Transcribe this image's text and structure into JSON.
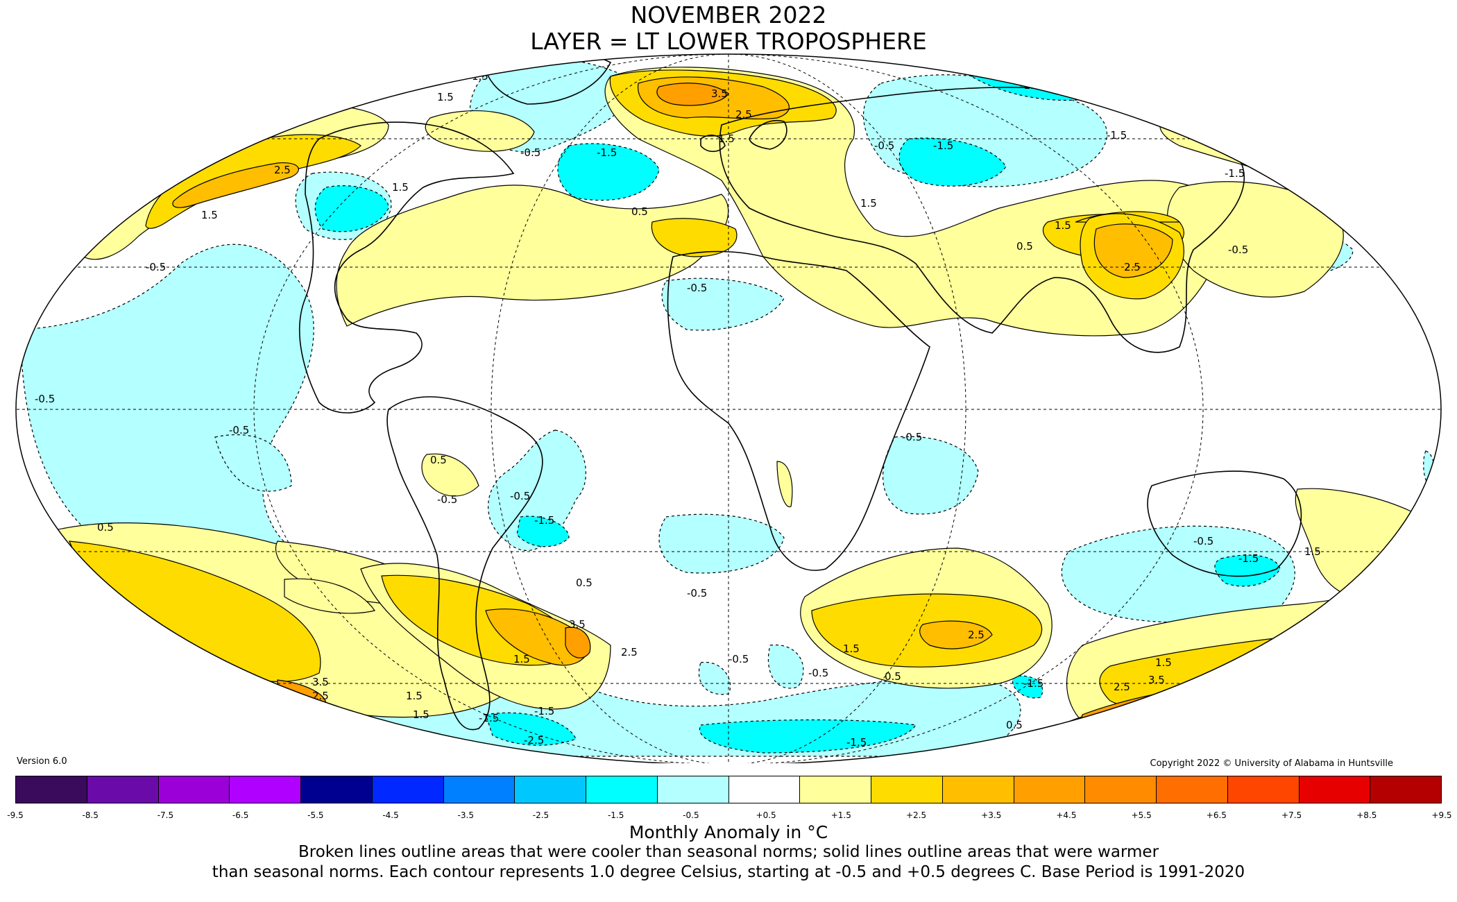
{
  "title": {
    "line1": "NOVEMBER 2022",
    "line2": "LAYER = LT LOWER TROPOSPHERE"
  },
  "version": "Version 6.0",
  "copyright": "Copyright 2022 © University of Alabama in Huntsville",
  "colorbar": {
    "label": "Monthly Anomaly in °C",
    "ticks": [
      "-9.5",
      "-8.5",
      "-7.5",
      "-6.5",
      "-5.5",
      "-4.5",
      "-3.5",
      "-2.5",
      "-1.5",
      "-0.5",
      "+0.5",
      "+1.5",
      "+2.5",
      "+3.5",
      "+4.5",
      "+5.5",
      "+6.5",
      "+7.5",
      "+8.5",
      "+9.5"
    ],
    "colors": [
      "#3a0a5c",
      "#6a0aa8",
      "#9c00d8",
      "#b000ff",
      "#000090",
      "#0028ff",
      "#0080ff",
      "#00c8ff",
      "#00ffff",
      "#b4ffff",
      "#ffffff",
      "#ffff9c",
      "#ffdc00",
      "#ffbe00",
      "#ffa000",
      "#ff8c00",
      "#ff6e00",
      "#ff4600",
      "#e60000",
      "#b40000"
    ]
  },
  "notes": {
    "line1": "Broken lines outline areas that were cooler than seasonal norms; solid lines outline areas that were warmer",
    "line2": "than seasonal norms. Each contour represents 1.0 degree Celsius, starting at -0.5 and +0.5 degrees C. Base Period is 1991-2020"
  },
  "map": {
    "projection": "Mollweide",
    "contour_labels": [
      "1.5",
      "2.5",
      "1.5",
      "1.5",
      "1.5",
      "-0.5",
      "-1.5",
      "-1.5",
      "-0.5",
      "3.5",
      "2.5",
      "1.5",
      "0.5",
      "-1.5",
      "-1.5",
      "0.5",
      "1.5",
      "2.5",
      "-0.5",
      "-1.5",
      "1.5",
      "-0.5",
      "-0.5",
      "-0.5",
      "-0.5",
      "0.5",
      "-0.5",
      "-1.5",
      "-0.5",
      "0.5",
      "0.5",
      "3.5",
      "2.5",
      "1.5",
      "-0.5",
      "-0.5",
      "1.5",
      "2.5",
      "0.5",
      "-0.5",
      "-0.5",
      "-1.5",
      "1.5",
      "3.5",
      "2.5",
      "1.5",
      "-1.5",
      "-1.5",
      "-1.5",
      "1.5",
      "-2.5",
      "1.5",
      "2.5",
      "3.5",
      "-1.5",
      "0.5",
      "1.5",
      "-0.5"
    ]
  }
}
